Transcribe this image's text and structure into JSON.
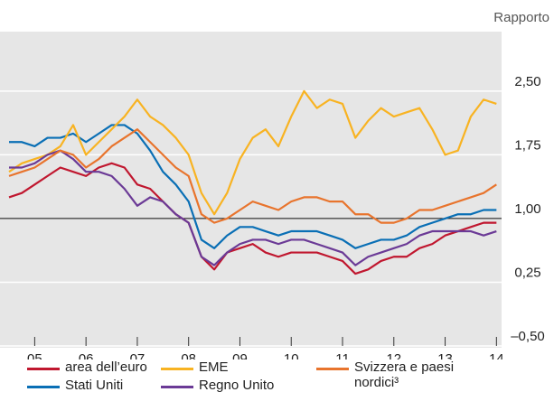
{
  "chart_data": {
    "type": "line",
    "y_label": "Rapporto",
    "x": [
      2005,
      2005.25,
      2005.5,
      2005.75,
      2006,
      2006.25,
      2006.5,
      2006.75,
      2007,
      2007.25,
      2007.5,
      2007.75,
      2008,
      2008.25,
      2008.5,
      2008.75,
      2009,
      2009.25,
      2009.5,
      2009.75,
      2010,
      2010.25,
      2010.5,
      2010.75,
      2011,
      2011.25,
      2011.5,
      2011.75,
      2012,
      2012.25,
      2012.5,
      2012.75,
      2013,
      2013.25,
      2013.5,
      2013.75,
      2014,
      2014.25,
      2014.5
    ],
    "xlim": [
      2005,
      2014.6
    ],
    "xticks": [
      {
        "value": 2005.5,
        "label": "05"
      },
      {
        "value": 2006.5,
        "label": "06"
      },
      {
        "value": 2007.5,
        "label": "07"
      },
      {
        "value": 2008.5,
        "label": "08"
      },
      {
        "value": 2009.5,
        "label": "09"
      },
      {
        "value": 2010.5,
        "label": "10"
      },
      {
        "value": 2011.5,
        "label": "11"
      },
      {
        "value": 2012.5,
        "label": "12"
      },
      {
        "value": 2013.5,
        "label": "13"
      },
      {
        "value": 2014.5,
        "label": "14"
      }
    ],
    "ylim": [
      -0.5,
      3.2
    ],
    "yticks": [
      {
        "value": -0.5,
        "label": "–0,50"
      },
      {
        "value": 0.25,
        "label": "0,25"
      },
      {
        "value": 1.0,
        "label": "1,00"
      },
      {
        "value": 1.75,
        "label": "1,75"
      },
      {
        "value": 2.5,
        "label": "2,50"
      }
    ],
    "hline": 1.0,
    "grid": true,
    "series": [
      {
        "name": "area dell’euro",
        "color": "#c0172f",
        "values": [
          1.25,
          1.3,
          1.4,
          1.5,
          1.6,
          1.55,
          1.5,
          1.6,
          1.65,
          1.6,
          1.4,
          1.35,
          1.2,
          1.05,
          0.95,
          0.55,
          0.4,
          0.6,
          0.65,
          0.7,
          0.6,
          0.55,
          0.6,
          0.6,
          0.6,
          0.55,
          0.5,
          0.35,
          0.4,
          0.5,
          0.55,
          0.55,
          0.65,
          0.7,
          0.8,
          0.85,
          0.9,
          0.95,
          0.95
        ]
      },
      {
        "name": "Stati Uniti",
        "color": "#0a6fb5",
        "values": [
          1.9,
          1.9,
          1.85,
          1.95,
          1.95,
          2.0,
          1.9,
          2.0,
          2.1,
          2.1,
          2.0,
          1.8,
          1.55,
          1.4,
          1.2,
          0.75,
          0.65,
          0.8,
          0.9,
          0.9,
          0.85,
          0.8,
          0.85,
          0.85,
          0.85,
          0.8,
          0.75,
          0.65,
          0.7,
          0.75,
          0.75,
          0.8,
          0.9,
          0.95,
          1.0,
          1.05,
          1.05,
          1.1,
          1.1
        ]
      },
      {
        "name": "EME",
        "color": "#f8b322",
        "values": [
          1.55,
          1.65,
          1.7,
          1.75,
          1.85,
          2.1,
          1.75,
          1.9,
          2.05,
          2.2,
          2.4,
          2.2,
          2.1,
          1.95,
          1.75,
          1.3,
          1.05,
          1.3,
          1.7,
          1.95,
          2.05,
          1.85,
          2.2,
          2.5,
          2.3,
          2.4,
          2.35,
          1.95,
          2.15,
          2.3,
          2.2,
          2.25,
          2.3,
          2.05,
          1.75,
          1.8,
          2.2,
          2.4,
          2.35
        ]
      },
      {
        "name": "Regno Unito",
        "color": "#6b3a96",
        "values": [
          1.6,
          1.6,
          1.65,
          1.75,
          1.8,
          1.7,
          1.55,
          1.55,
          1.5,
          1.35,
          1.15,
          1.25,
          1.2,
          1.05,
          0.95,
          0.55,
          0.45,
          0.6,
          0.7,
          0.75,
          0.75,
          0.7,
          0.75,
          0.75,
          0.7,
          0.65,
          0.6,
          0.45,
          0.55,
          0.6,
          0.65,
          0.7,
          0.8,
          0.85,
          0.85,
          0.85,
          0.85,
          0.8,
          0.85
        ]
      },
      {
        "name": "Svizzera e paesi nordici³",
        "color": "#e8742d",
        "values": [
          1.5,
          1.55,
          1.6,
          1.7,
          1.8,
          1.75,
          1.6,
          1.7,
          1.85,
          1.95,
          2.05,
          1.9,
          1.75,
          1.6,
          1.5,
          1.05,
          0.95,
          1.0,
          1.1,
          1.2,
          1.15,
          1.1,
          1.2,
          1.25,
          1.25,
          1.2,
          1.2,
          1.05,
          1.05,
          0.95,
          0.95,
          1.0,
          1.1,
          1.1,
          1.15,
          1.2,
          1.25,
          1.3,
          1.4
        ]
      }
    ]
  }
}
